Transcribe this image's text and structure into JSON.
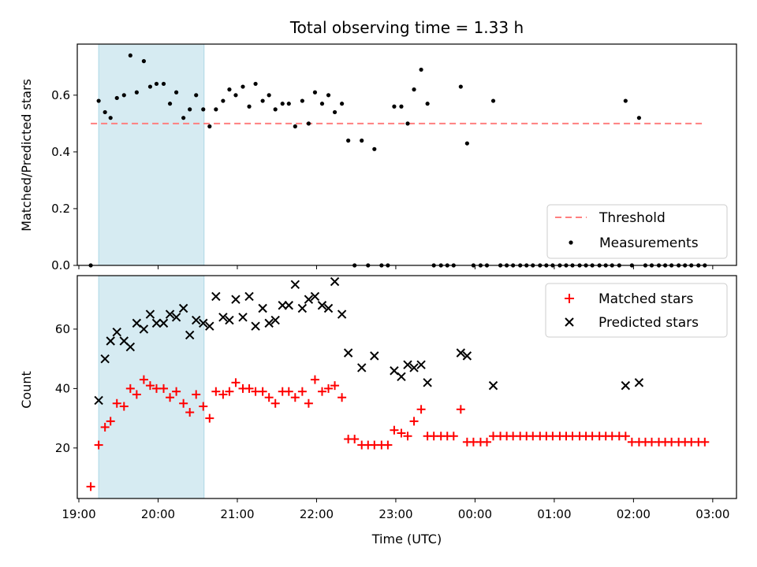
{
  "chart_data": [
    {
      "type": "scatter",
      "title": "Total observing time = 1.33 h",
      "xlabel": "",
      "ylabel": "Matched/Predicted stars",
      "xlim": [
        -0.02,
        8.3
      ],
      "ylim": [
        0.0,
        0.78
      ],
      "yticks": [
        0.0,
        0.2,
        0.4,
        0.6
      ],
      "ytick_labels": [
        "0.0",
        "0.2",
        "0.4",
        "0.6"
      ],
      "shaded_interval": [
        0.25,
        1.58
      ],
      "threshold": {
        "name": "Threshold",
        "y": 0.5,
        "x": [
          0.15,
          7.9
        ],
        "color": "#ff7f7f"
      },
      "legend_position": "lower right",
      "series": [
        {
          "name": "Measurements",
          "color": "#000000",
          "marker": "dot",
          "x": [
            0.15,
            0.25,
            0.33,
            0.4,
            0.48,
            0.57,
            0.65,
            0.73,
            0.82,
            0.9,
            0.98,
            1.07,
            1.15,
            1.23,
            1.32,
            1.4,
            1.48,
            1.57,
            1.65,
            1.73,
            1.82,
            1.9,
            1.98,
            2.07,
            2.15,
            2.23,
            2.32,
            2.4,
            2.48,
            2.57,
            2.65,
            2.73,
            2.82,
            2.9,
            2.98,
            3.07,
            3.15,
            3.23,
            3.32,
            3.4,
            3.48,
            3.57,
            3.65,
            3.73,
            3.82,
            3.9,
            3.98,
            4.07,
            4.15,
            4.23,
            4.32,
            4.4,
            4.48,
            4.57,
            4.65,
            4.73,
            4.82,
            4.9,
            4.98,
            5.07,
            5.15,
            5.23,
            5.32,
            5.4,
            5.48,
            5.57,
            5.65,
            5.73,
            5.82,
            5.9,
            5.98,
            6.07,
            6.15,
            6.23,
            6.32,
            6.4,
            6.48,
            6.57,
            6.65,
            6.73,
            6.82,
            6.9,
            6.98,
            7.07,
            7.15,
            7.23,
            7.32,
            7.4,
            7.48,
            7.57,
            7.65,
            7.73,
            7.82,
            7.9
          ],
          "y": [
            0.0,
            0.58,
            0.54,
            0.52,
            0.59,
            0.6,
            0.74,
            0.61,
            0.72,
            0.63,
            0.64,
            0.64,
            0.57,
            0.61,
            0.52,
            0.55,
            0.6,
            0.55,
            0.49,
            0.55,
            0.58,
            0.62,
            0.6,
            0.63,
            0.56,
            0.64,
            0.58,
            0.6,
            0.55,
            0.57,
            0.57,
            0.49,
            0.58,
            0.5,
            0.61,
            0.57,
            0.6,
            0.54,
            0.57,
            0.44,
            0.0,
            0.44,
            0.0,
            0.41,
            0.0,
            0.0,
            0.56,
            0.56,
            0.5,
            0.62,
            0.69,
            0.57,
            0.0,
            0.0,
            0.0,
            0.0,
            0.63,
            0.43,
            0.0,
            0.0,
            0.0,
            0.58,
            0.0,
            0.0,
            0.0,
            0.0,
            0.0,
            0.0,
            0.0,
            0.0,
            0.0,
            0.0,
            0.0,
            0.0,
            0.0,
            0.0,
            0.0,
            0.0,
            0.0,
            0.0,
            0.0,
            0.58,
            0.0,
            0.52,
            0.0,
            0.0,
            0.0,
            0.0,
            0.0,
            0.0,
            0.0,
            0.0,
            0.0,
            0.0
          ]
        }
      ]
    },
    {
      "type": "scatter",
      "title": "",
      "xlabel": "Time (UTC)",
      "ylabel": "Count",
      "xlim": [
        -0.02,
        8.3
      ],
      "ylim": [
        3,
        78
      ],
      "yticks": [
        20,
        40,
        60
      ],
      "ytick_labels": [
        "20",
        "40",
        "60"
      ],
      "xticks": [
        0,
        1,
        2,
        3,
        4,
        5,
        6,
        7,
        8
      ],
      "xtick_labels": [
        "19:00",
        "20:00",
        "21:00",
        "22:00",
        "23:00",
        "00:00",
        "01:00",
        "02:00",
        "03:00"
      ],
      "shaded_interval": [
        0.25,
        1.58
      ],
      "legend_position": "upper right",
      "series": [
        {
          "name": "Matched stars",
          "color": "#ff0000",
          "marker": "plus",
          "x": [
            0.15,
            0.25,
            0.33,
            0.4,
            0.48,
            0.57,
            0.65,
            0.73,
            0.82,
            0.9,
            0.98,
            1.07,
            1.15,
            1.23,
            1.32,
            1.4,
            1.48,
            1.57,
            1.65,
            1.73,
            1.82,
            1.9,
            1.98,
            2.07,
            2.15,
            2.23,
            2.32,
            2.4,
            2.48,
            2.57,
            2.65,
            2.73,
            2.82,
            2.9,
            2.98,
            3.07,
            3.15,
            3.23,
            3.32,
            3.4,
            3.48,
            3.57,
            3.65,
            3.73,
            3.82,
            3.9,
            3.98,
            4.07,
            4.15,
            4.23,
            4.32,
            4.4,
            4.48,
            4.57,
            4.65,
            4.73,
            4.82,
            4.9,
            4.98,
            5.07,
            5.15,
            5.23,
            5.32,
            5.4,
            5.48,
            5.57,
            5.65,
            5.73,
            5.82,
            5.9,
            5.98,
            6.07,
            6.15,
            6.23,
            6.32,
            6.4,
            6.48,
            6.57,
            6.65,
            6.73,
            6.82,
            6.9,
            6.98,
            7.07,
            7.15,
            7.23,
            7.32,
            7.4,
            7.48,
            7.57,
            7.65,
            7.73,
            7.82,
            7.9
          ],
          "y": [
            7,
            21,
            27,
            29,
            35,
            34,
            40,
            38,
            43,
            41,
            40,
            40,
            37,
            39,
            35,
            32,
            38,
            34,
            30,
            39,
            38,
            39,
            42,
            40,
            40,
            39,
            39,
            37,
            35,
            39,
            39,
            37,
            39,
            35,
            43,
            39,
            40,
            41,
            37,
            23,
            23,
            21,
            21,
            21,
            21,
            21,
            26,
            25,
            24,
            29,
            33,
            24,
            24,
            24,
            24,
            24,
            33,
            22,
            22,
            22,
            22,
            24,
            24,
            24,
            24,
            24,
            24,
            24,
            24,
            24,
            24,
            24,
            24,
            24,
            24,
            24,
            24,
            24,
            24,
            24,
            24,
            24,
            22,
            22,
            22,
            22,
            22,
            22,
            22,
            22,
            22,
            22,
            22,
            22
          ]
        },
        {
          "name": "Predicted stars",
          "color": "#000000",
          "marker": "x",
          "x": [
            0.25,
            0.33,
            0.4,
            0.48,
            0.57,
            0.65,
            0.73,
            0.82,
            0.9,
            0.98,
            1.07,
            1.15,
            1.23,
            1.32,
            1.4,
            1.48,
            1.57,
            1.65,
            1.73,
            1.82,
            1.9,
            1.98,
            2.07,
            2.15,
            2.23,
            2.32,
            2.4,
            2.48,
            2.57,
            2.65,
            2.73,
            2.82,
            2.9,
            2.98,
            3.07,
            3.15,
            3.23,
            3.32,
            3.4,
            3.57,
            3.73,
            3.98,
            4.07,
            4.15,
            4.23,
            4.32,
            4.4,
            4.82,
            4.9,
            5.23,
            6.9,
            7.07
          ],
          "y": [
            36,
            50,
            56,
            59,
            56,
            54,
            62,
            60,
            65,
            62,
            62,
            65,
            64,
            67,
            58,
            63,
            62,
            61,
            71,
            64,
            63,
            70,
            64,
            71,
            61,
            67,
            62,
            63,
            68,
            68,
            75,
            67,
            70,
            71,
            68,
            67,
            76,
            65,
            52,
            47,
            51,
            46,
            44,
            48,
            47,
            48,
            42,
            52,
            51,
            41,
            41,
            42
          ]
        }
      ]
    }
  ]
}
